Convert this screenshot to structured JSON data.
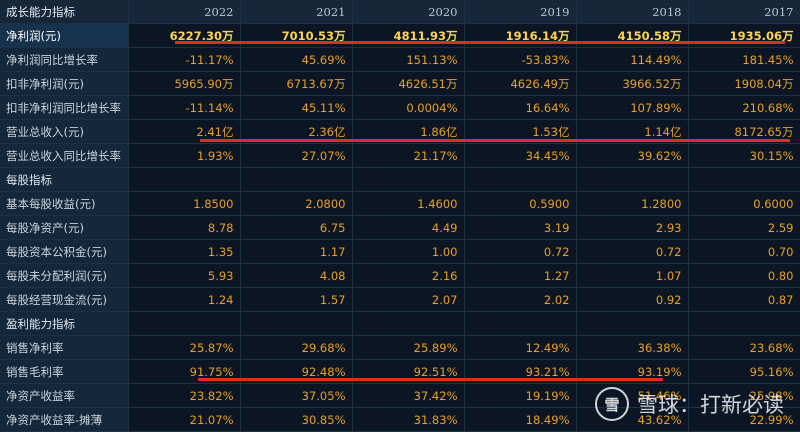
{
  "table": {
    "corner_label": "成长能力指标",
    "years": [
      "2022",
      "2021",
      "2020",
      "2019",
      "2018",
      "2017"
    ],
    "rows": [
      {
        "type": "row",
        "highlight": true,
        "label": "净利润(元)",
        "values": [
          "6227.30万",
          "7010.53万",
          "4811.93万",
          "1916.14万",
          "4150.58万",
          "1935.06万"
        ]
      },
      {
        "type": "row",
        "label": "净利润同比增长率",
        "values": [
          "-11.17%",
          "45.69%",
          "151.13%",
          "-53.83%",
          "114.49%",
          "181.45%"
        ]
      },
      {
        "type": "row",
        "label": "扣非净利润(元)",
        "values": [
          "5965.90万",
          "6713.67万",
          "4626.51万",
          "4626.49万",
          "3966.52万",
          "1908.04万"
        ]
      },
      {
        "type": "row",
        "label": "扣非净利润同比增长率",
        "values": [
          "-11.14%",
          "45.11%",
          "0.0004%",
          "16.64%",
          "107.89%",
          "210.68%"
        ]
      },
      {
        "type": "row",
        "label": "营业总收入(元)",
        "values": [
          "2.41亿",
          "2.36亿",
          "1.86亿",
          "1.53亿",
          "1.14亿",
          "8172.65万"
        ]
      },
      {
        "type": "row",
        "label": "营业总收入同比增长率",
        "values": [
          "1.93%",
          "27.07%",
          "21.17%",
          "34.45%",
          "39.62%",
          "30.15%"
        ]
      },
      {
        "type": "section",
        "label": "每股指标"
      },
      {
        "type": "row",
        "label": "基本每股收益(元)",
        "values": [
          "1.8500",
          "2.0800",
          "1.4600",
          "0.5900",
          "1.2800",
          "0.6000"
        ]
      },
      {
        "type": "row",
        "label": "每股净资产(元)",
        "values": [
          "8.78",
          "6.75",
          "4.49",
          "3.19",
          "2.93",
          "2.59"
        ]
      },
      {
        "type": "row",
        "label": "每股资本公积金(元)",
        "values": [
          "1.35",
          "1.17",
          "1.00",
          "0.72",
          "0.72",
          "0.70"
        ]
      },
      {
        "type": "row",
        "label": "每股未分配利润(元)",
        "values": [
          "5.93",
          "4.08",
          "2.16",
          "1.27",
          "1.07",
          "0.80"
        ]
      },
      {
        "type": "row",
        "label": "每股经营现金流(元)",
        "values": [
          "1.24",
          "1.57",
          "2.07",
          "2.02",
          "0.92",
          "0.87"
        ]
      },
      {
        "type": "section",
        "label": "盈利能力指标"
      },
      {
        "type": "row",
        "label": "销售净利率",
        "values": [
          "25.87%",
          "29.68%",
          "25.89%",
          "12.49%",
          "36.38%",
          "23.68%"
        ]
      },
      {
        "type": "row",
        "label": "销售毛利率",
        "values": [
          "91.75%",
          "92.48%",
          "92.51%",
          "93.21%",
          "93.19%",
          "95.16%"
        ]
      },
      {
        "type": "row",
        "label": "净资产收益率",
        "values": [
          "23.82%",
          "37.05%",
          "37.42%",
          "19.19%",
          "51.46%",
          "25.98%"
        ]
      },
      {
        "type": "row",
        "label": "净资产收益率-摊薄",
        "values": [
          "21.07%",
          "30.85%",
          "31.83%",
          "18.49%",
          "43.62%",
          "22.99%"
        ]
      }
    ]
  },
  "watermark": {
    "logo_text": "雪",
    "text": "雪球：打新必读"
  },
  "colors": {
    "background": "#0b1524",
    "value_text": "#e9a21f",
    "highlight_text": "#ffd34d",
    "underline": "#e02b2b"
  }
}
